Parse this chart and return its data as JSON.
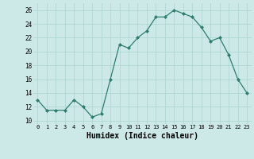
{
  "x": [
    0,
    1,
    2,
    3,
    4,
    5,
    6,
    7,
    8,
    9,
    10,
    11,
    12,
    13,
    14,
    15,
    16,
    17,
    18,
    19,
    20,
    21,
    22,
    23
  ],
  "y": [
    13,
    11.5,
    11.5,
    11.5,
    13,
    12,
    10.5,
    11,
    16,
    21,
    20.5,
    22,
    23,
    25,
    25,
    26,
    25.5,
    25,
    23.5,
    21.5,
    22,
    19.5,
    16,
    14
  ],
  "line_color": "#2e7d6e",
  "marker_color": "#2e7d6e",
  "bg_color": "#cce9e7",
  "grid_color": "#aad4d0",
  "xlabel": "Humidex (Indice chaleur)",
  "xlabel_fontsize": 7,
  "ytick_labels": [
    "10",
    "12",
    "14",
    "16",
    "18",
    "20",
    "22",
    "24",
    "26"
  ],
  "yticks": [
    10,
    12,
    14,
    16,
    18,
    20,
    22,
    24,
    26
  ],
  "xtick_labels": [
    "0",
    "1",
    "2",
    "3",
    "4",
    "5",
    "6",
    "7",
    "8",
    "9",
    "10",
    "11",
    "12",
    "13",
    "14",
    "15",
    "16",
    "17",
    "18",
    "19",
    "20",
    "21",
    "22",
    "23"
  ],
  "ylim": [
    9.5,
    27.0
  ],
  "xlim": [
    -0.5,
    23.5
  ]
}
